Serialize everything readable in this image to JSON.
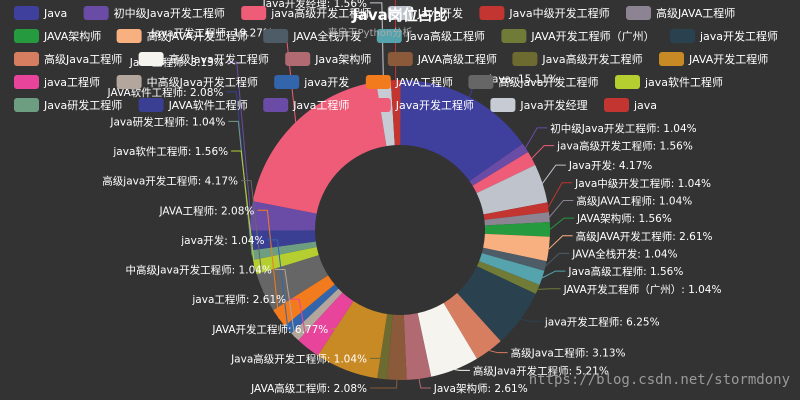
{
  "chart_data": {
    "type": "pie",
    "title": "Java岗位占比",
    "subtitle": "来自于Python分析",
    "legend_position": "top",
    "slices": [
      {
        "name": "Java",
        "value": 15.11,
        "color": "#3f3f9e"
      },
      {
        "name": "初中级Java开发工程师",
        "value": 1.04,
        "color": "#6a4ca6"
      },
      {
        "name": "java高级开发工程师",
        "value": 1.56,
        "color": "#ee5c78"
      },
      {
        "name": "Java开发",
        "value": 4.17,
        "color": "#bec3cc"
      },
      {
        "name": "Java中级开发工程师",
        "value": 1.04,
        "color": "#c23531"
      },
      {
        "name": "高级JAVA工程师",
        "value": 1.04,
        "color": "#8d8493"
      },
      {
        "name": "JAVA架构师",
        "value": 1.56,
        "color": "#259a3e"
      },
      {
        "name": "高级JAVA开发工程师",
        "value": 2.61,
        "color": "#f9b081"
      },
      {
        "name": "JAVA全栈开发",
        "value": 1.04,
        "color": "#4e5c68"
      },
      {
        "name": "Java高级工程师",
        "value": 1.56,
        "color": "#55a3ad"
      },
      {
        "name": "JAVA开发工程师（广州）",
        "value": 1.04,
        "color": "#6f7b37"
      },
      {
        "name": "java开发工程师",
        "value": 6.25,
        "color": "#2a4150"
      },
      {
        "name": "高级Java工程师",
        "value": 3.13,
        "color": "#d77e61"
      },
      {
        "name": "高级Java开发工程师",
        "value": 5.21,
        "color": "#f5f4ee"
      },
      {
        "name": "Java架构师",
        "value": 2.61,
        "color": "#b16a71"
      },
      {
        "name": "JAVA高级工程师",
        "value": 2.08,
        "color": "#8a5a3a"
      },
      {
        "name": "Java高级开发工程师",
        "value": 1.04,
        "color": "#6e6b30"
      },
      {
        "name": "JAVA开发工程师",
        "value": 6.77,
        "color": "#c88a24"
      },
      {
        "name": "java工程师",
        "value": 2.61,
        "color": "#e8449b"
      },
      {
        "name": "中高级Java开发工程师",
        "value": 1.04,
        "color": "#b3a69c"
      },
      {
        "name": "java开发",
        "value": 1.04,
        "color": "#3365ad"
      },
      {
        "name": "JAVA工程师",
        "value": 2.08,
        "color": "#f27b1e"
      },
      {
        "name": "高级java开发工程师",
        "value": 4.17,
        "color": "#666666"
      },
      {
        "name": "java软件工程师",
        "value": 1.56,
        "color": "#b5ce30"
      },
      {
        "name": "Java研发工程师",
        "value": 1.04,
        "color": "#6e9e82"
      },
      {
        "name": "JAVA软件工程师",
        "value": 2.08,
        "color": "#3a3f94"
      },
      {
        "name": "Java工程师",
        "value": 3.13,
        "color": "#6a4ca6"
      },
      {
        "name": "Java开发工程师",
        "value": 19.27,
        "color": "#ee5c78"
      },
      {
        "name": "Java开发经理",
        "value": 1.56,
        "color": "#c7ccd4"
      },
      {
        "name": "java",
        "value": 1.04,
        "color": "#c23531"
      }
    ],
    "legend_items": [
      "Java",
      "初中级Java开发工程师",
      "java高级开发工程师",
      "Java开发",
      "Java中级开发工程师",
      "高级JAVA工程师",
      "JAVA架构师",
      "高级JAVA开发工程师",
      "JAVA全栈开发",
      "Java高级工程师",
      "JAVA开发工程师（广州）",
      "java开发工程师",
      "高级Java工程师",
      "高级Java开发工程师",
      "Java架构师",
      "JAVA高级工程师",
      "Java高级开发工程师",
      "JAVA开发工程师",
      "java工程师",
      "中高级Java开发工程师",
      "java开发",
      "JAVA工程师",
      "高级java开发工程师",
      "java软件工程师",
      "Java研发工程师",
      "JAVA软件工程师",
      "Java工程师",
      "Java开发工程师",
      "Java开发经理",
      "java"
    ]
  },
  "watermark": "https://blog.csdn.net/stormdony"
}
